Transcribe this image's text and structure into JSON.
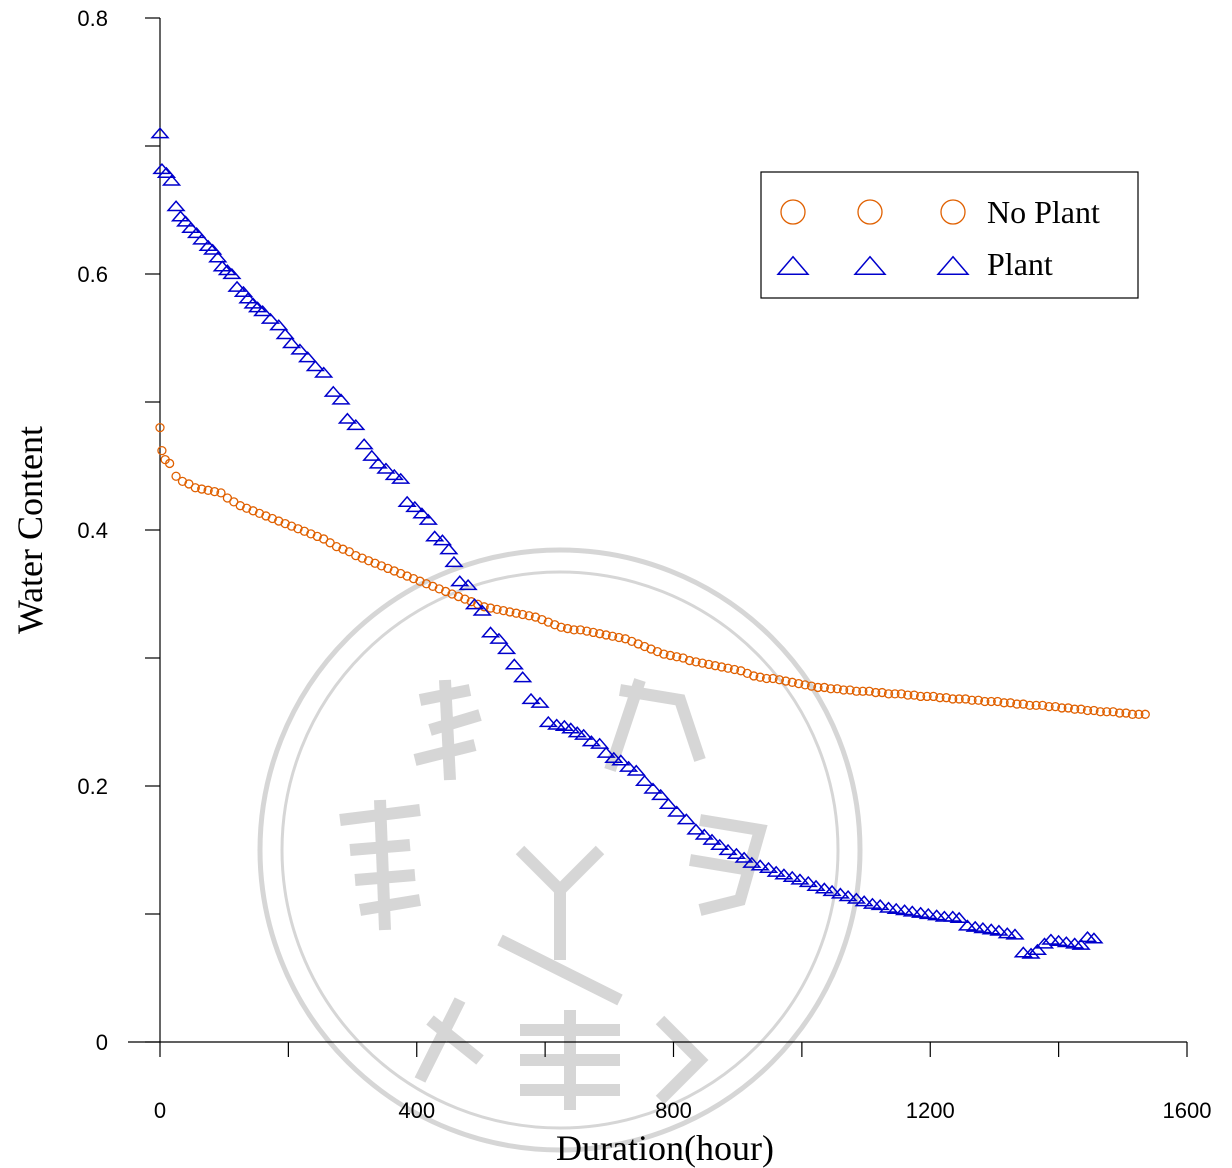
{
  "chart_data": {
    "type": "scatter",
    "xlabel": "Duration(hour)",
    "ylabel": "Water Content",
    "xlim": [
      0,
      1600
    ],
    "ylim": [
      0,
      0.8
    ],
    "x_ticks": [
      "0",
      "400",
      "800",
      "1200",
      "1600"
    ],
    "y_ticks": [
      "0",
      "0.2",
      "0.4",
      "0.6",
      "0.8"
    ],
    "grid": false,
    "legend_position": "top-right",
    "series": [
      {
        "name": "No Plant",
        "marker": "circle",
        "color": "#e06000",
        "points": [
          [
            0,
            0.48
          ],
          [
            3,
            0.462
          ],
          [
            8,
            0.455
          ],
          [
            15,
            0.452
          ],
          [
            25,
            0.442
          ],
          [
            35,
            0.438
          ],
          [
            45,
            0.436
          ],
          [
            55,
            0.433
          ],
          [
            65,
            0.432
          ],
          [
            75,
            0.431
          ],
          [
            85,
            0.43
          ],
          [
            95,
            0.429
          ],
          [
            105,
            0.425
          ],
          [
            115,
            0.422
          ],
          [
            125,
            0.419
          ],
          [
            135,
            0.417
          ],
          [
            145,
            0.415
          ],
          [
            155,
            0.413
          ],
          [
            165,
            0.411
          ],
          [
            175,
            0.409
          ],
          [
            185,
            0.407
          ],
          [
            195,
            0.405
          ],
          [
            205,
            0.403
          ],
          [
            215,
            0.401
          ],
          [
            225,
            0.399
          ],
          [
            235,
            0.397
          ],
          [
            245,
            0.395
          ],
          [
            255,
            0.393
          ],
          [
            265,
            0.39
          ],
          [
            275,
            0.387
          ],
          [
            285,
            0.385
          ],
          [
            295,
            0.383
          ],
          [
            305,
            0.38
          ],
          [
            315,
            0.378
          ],
          [
            325,
            0.376
          ],
          [
            335,
            0.374
          ],
          [
            345,
            0.372
          ],
          [
            355,
            0.37
          ],
          [
            365,
            0.368
          ],
          [
            375,
            0.366
          ],
          [
            385,
            0.364
          ],
          [
            395,
            0.362
          ],
          [
            405,
            0.36
          ],
          [
            415,
            0.358
          ],
          [
            425,
            0.356
          ],
          [
            435,
            0.354
          ],
          [
            445,
            0.352
          ],
          [
            455,
            0.35
          ],
          [
            465,
            0.348
          ],
          [
            475,
            0.346
          ],
          [
            485,
            0.344
          ],
          [
            495,
            0.342
          ],
          [
            505,
            0.34
          ],
          [
            515,
            0.339
          ],
          [
            525,
            0.338
          ],
          [
            535,
            0.337
          ],
          [
            545,
            0.336
          ],
          [
            555,
            0.335
          ],
          [
            565,
            0.334
          ],
          [
            575,
            0.333
          ],
          [
            585,
            0.332
          ],
          [
            595,
            0.33
          ],
          [
            605,
            0.328
          ],
          [
            615,
            0.326
          ],
          [
            625,
            0.324
          ],
          [
            635,
            0.323
          ],
          [
            645,
            0.322
          ],
          [
            655,
            0.322
          ],
          [
            665,
            0.321
          ],
          [
            675,
            0.32
          ],
          [
            685,
            0.319
          ],
          [
            695,
            0.318
          ],
          [
            705,
            0.317
          ],
          [
            715,
            0.316
          ],
          [
            725,
            0.315
          ],
          [
            735,
            0.313
          ],
          [
            745,
            0.311
          ],
          [
            755,
            0.309
          ],
          [
            765,
            0.307
          ],
          [
            775,
            0.305
          ],
          [
            785,
            0.303
          ],
          [
            795,
            0.302
          ],
          [
            805,
            0.301
          ],
          [
            815,
            0.3
          ],
          [
            825,
            0.298
          ],
          [
            835,
            0.297
          ],
          [
            845,
            0.296
          ],
          [
            855,
            0.295
          ],
          [
            865,
            0.294
          ],
          [
            875,
            0.293
          ],
          [
            885,
            0.292
          ],
          [
            895,
            0.291
          ],
          [
            905,
            0.29
          ],
          [
            915,
            0.288
          ],
          [
            925,
            0.286
          ],
          [
            935,
            0.285
          ],
          [
            945,
            0.284
          ],
          [
            955,
            0.284
          ],
          [
            965,
            0.283
          ],
          [
            975,
            0.282
          ],
          [
            985,
            0.281
          ],
          [
            995,
            0.28
          ],
          [
            1005,
            0.279
          ],
          [
            1015,
            0.278
          ],
          [
            1025,
            0.277
          ],
          [
            1035,
            0.277
          ],
          [
            1045,
            0.276
          ],
          [
            1055,
            0.276
          ],
          [
            1065,
            0.275
          ],
          [
            1075,
            0.275
          ],
          [
            1085,
            0.274
          ],
          [
            1095,
            0.274
          ],
          [
            1105,
            0.274
          ],
          [
            1115,
            0.273
          ],
          [
            1125,
            0.273
          ],
          [
            1135,
            0.272
          ],
          [
            1145,
            0.272
          ],
          [
            1155,
            0.272
          ],
          [
            1165,
            0.271
          ],
          [
            1175,
            0.271
          ],
          [
            1185,
            0.27
          ],
          [
            1195,
            0.27
          ],
          [
            1205,
            0.27
          ],
          [
            1215,
            0.269
          ],
          [
            1225,
            0.269
          ],
          [
            1235,
            0.268
          ],
          [
            1245,
            0.268
          ],
          [
            1255,
            0.268
          ],
          [
            1265,
            0.267
          ],
          [
            1275,
            0.267
          ],
          [
            1285,
            0.266
          ],
          [
            1295,
            0.266
          ],
          [
            1305,
            0.266
          ],
          [
            1315,
            0.265
          ],
          [
            1325,
            0.265
          ],
          [
            1335,
            0.264
          ],
          [
            1345,
            0.264
          ],
          [
            1355,
            0.263
          ],
          [
            1365,
            0.263
          ],
          [
            1375,
            0.263
          ],
          [
            1385,
            0.262
          ],
          [
            1395,
            0.262
          ],
          [
            1405,
            0.261
          ],
          [
            1415,
            0.261
          ],
          [
            1425,
            0.26
          ],
          [
            1435,
            0.26
          ],
          [
            1445,
            0.259
          ],
          [
            1455,
            0.259
          ],
          [
            1465,
            0.258
          ],
          [
            1475,
            0.258
          ],
          [
            1485,
            0.258
          ],
          [
            1495,
            0.257
          ],
          [
            1505,
            0.257
          ],
          [
            1515,
            0.256
          ],
          [
            1525,
            0.256
          ],
          [
            1535,
            0.256
          ]
        ]
      },
      {
        "name": "Plant",
        "marker": "triangle",
        "color": "#0000cc",
        "points": [
          [
            0,
            0.71
          ],
          [
            3,
            0.682
          ],
          [
            10,
            0.679
          ],
          [
            18,
            0.673
          ],
          [
            25,
            0.653
          ],
          [
            32,
            0.645
          ],
          [
            40,
            0.641
          ],
          [
            48,
            0.636
          ],
          [
            57,
            0.632
          ],
          [
            65,
            0.627
          ],
          [
            75,
            0.622
          ],
          [
            82,
            0.619
          ],
          [
            90,
            0.613
          ],
          [
            97,
            0.606
          ],
          [
            105,
            0.603
          ],
          [
            112,
            0.6
          ],
          [
            120,
            0.59
          ],
          [
            130,
            0.586
          ],
          [
            137,
            0.581
          ],
          [
            145,
            0.577
          ],
          [
            152,
            0.574
          ],
          [
            160,
            0.571
          ],
          [
            172,
            0.565
          ],
          [
            185,
            0.56
          ],
          [
            195,
            0.553
          ],
          [
            205,
            0.546
          ],
          [
            218,
            0.541
          ],
          [
            230,
            0.535
          ],
          [
            242,
            0.528
          ],
          [
            255,
            0.523
          ],
          [
            270,
            0.508
          ],
          [
            282,
            0.502
          ],
          [
            292,
            0.487
          ],
          [
            305,
            0.482
          ],
          [
            318,
            0.467
          ],
          [
            330,
            0.458
          ],
          [
            340,
            0.452
          ],
          [
            352,
            0.448
          ],
          [
            365,
            0.443
          ],
          [
            375,
            0.44
          ],
          [
            385,
            0.422
          ],
          [
            397,
            0.418
          ],
          [
            408,
            0.413
          ],
          [
            418,
            0.408
          ],
          [
            428,
            0.395
          ],
          [
            440,
            0.392
          ],
          [
            450,
            0.385
          ],
          [
            458,
            0.375
          ],
          [
            467,
            0.36
          ],
          [
            480,
            0.357
          ],
          [
            490,
            0.342
          ],
          [
            502,
            0.337
          ],
          [
            515,
            0.32
          ],
          [
            528,
            0.315
          ],
          [
            540,
            0.307
          ],
          [
            552,
            0.295
          ],
          [
            565,
            0.285
          ],
          [
            578,
            0.268
          ],
          [
            592,
            0.265
          ],
          [
            605,
            0.25
          ],
          [
            618,
            0.248
          ],
          [
            630,
            0.247
          ],
          [
            640,
            0.245
          ],
          [
            650,
            0.242
          ],
          [
            660,
            0.24
          ],
          [
            672,
            0.235
          ],
          [
            685,
            0.233
          ],
          [
            695,
            0.226
          ],
          [
            707,
            0.222
          ],
          [
            718,
            0.22
          ],
          [
            730,
            0.215
          ],
          [
            742,
            0.212
          ],
          [
            755,
            0.204
          ],
          [
            768,
            0.198
          ],
          [
            780,
            0.193
          ],
          [
            792,
            0.186
          ],
          [
            805,
            0.18
          ],
          [
            820,
            0.174
          ],
          [
            835,
            0.166
          ],
          [
            848,
            0.162
          ],
          [
            860,
            0.158
          ],
          [
            872,
            0.154
          ],
          [
            885,
            0.15
          ],
          [
            898,
            0.147
          ],
          [
            910,
            0.144
          ],
          [
            922,
            0.14
          ],
          [
            935,
            0.138
          ],
          [
            948,
            0.136
          ],
          [
            960,
            0.133
          ],
          [
            972,
            0.131
          ],
          [
            985,
            0.129
          ],
          [
            997,
            0.127
          ],
          [
            1010,
            0.125
          ],
          [
            1022,
            0.122
          ],
          [
            1035,
            0.12
          ],
          [
            1047,
            0.118
          ],
          [
            1060,
            0.116
          ],
          [
            1072,
            0.114
          ],
          [
            1085,
            0.112
          ],
          [
            1097,
            0.11
          ],
          [
            1110,
            0.108
          ],
          [
            1122,
            0.107
          ],
          [
            1135,
            0.105
          ],
          [
            1147,
            0.104
          ],
          [
            1160,
            0.103
          ],
          [
            1172,
            0.102
          ],
          [
            1185,
            0.101
          ],
          [
            1197,
            0.1
          ],
          [
            1210,
            0.099
          ],
          [
            1222,
            0.098
          ],
          [
            1235,
            0.098
          ],
          [
            1245,
            0.097
          ],
          [
            1258,
            0.091
          ],
          [
            1270,
            0.09
          ],
          [
            1282,
            0.089
          ],
          [
            1295,
            0.088
          ],
          [
            1307,
            0.087
          ],
          [
            1320,
            0.085
          ],
          [
            1332,
            0.084
          ],
          [
            1345,
            0.07
          ],
          [
            1357,
            0.069
          ],
          [
            1367,
            0.072
          ],
          [
            1378,
            0.077
          ],
          [
            1388,
            0.08
          ],
          [
            1400,
            0.079
          ],
          [
            1412,
            0.078
          ],
          [
            1425,
            0.077
          ],
          [
            1435,
            0.076
          ],
          [
            1445,
            0.082
          ],
          [
            1455,
            0.081
          ]
        ]
      }
    ]
  }
}
